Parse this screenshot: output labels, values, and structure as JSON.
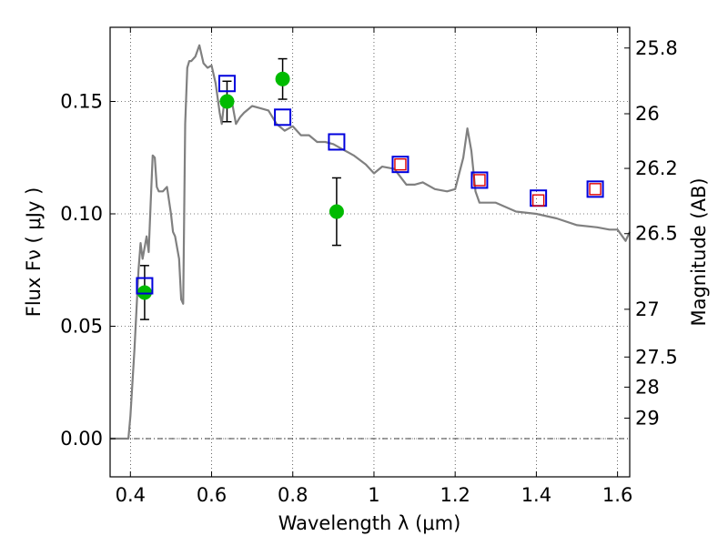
{
  "chart_data": {
    "type": "scatter",
    "title": "",
    "xlabel": "Wavelength  λ (μm)",
    "ylabel": "Flux  Fν  ( μJy )",
    "y2label": "Magnitude (AB)",
    "xlim": [
      0.35,
      1.63
    ],
    "ylim": [
      -0.017,
      0.183
    ],
    "grid": true,
    "x_ticks": [
      {
        "value": 0.4,
        "label": "0.4"
      },
      {
        "value": 0.6,
        "label": "0.6"
      },
      {
        "value": 0.8,
        "label": "0.8"
      },
      {
        "value": 1.0,
        "label": "1"
      },
      {
        "value": 1.2,
        "label": "1.2"
      },
      {
        "value": 1.4,
        "label": "1.4"
      },
      {
        "value": 1.6,
        "label": "1.6"
      }
    ],
    "y_ticks": [
      {
        "value": 0.0,
        "label": "0.00"
      },
      {
        "value": 0.05,
        "label": "0.05"
      },
      {
        "value": 0.1,
        "label": "0.10"
      },
      {
        "value": 0.15,
        "label": "0.15"
      }
    ],
    "mag_ticks": [
      {
        "value": 25.8,
        "label": "25.8"
      },
      {
        "value": 26.0,
        "label": "26"
      },
      {
        "value": 26.2,
        "label": "26.2"
      },
      {
        "value": 26.5,
        "label": "26.5"
      },
      {
        "value": 27.0,
        "label": "27"
      },
      {
        "value": 27.5,
        "label": "27.5"
      },
      {
        "value": 28.0,
        "label": "28"
      },
      {
        "value": 29.0,
        "label": "29"
      }
    ],
    "colors": {
      "model": "#808080",
      "observed": "#00bb00",
      "model_photometry_blue": "#0000dd",
      "model_photometry_red": "#dd0000"
    },
    "series": [
      {
        "kind": "model_spectrum",
        "x": [
          0.35,
          0.38,
          0.395,
          0.4,
          0.41,
          0.42,
          0.425,
          0.43,
          0.44,
          0.445,
          0.45,
          0.455,
          0.46,
          0.465,
          0.47,
          0.48,
          0.49,
          0.5,
          0.505,
          0.51,
          0.52,
          0.525,
          0.53,
          0.535,
          0.54,
          0.545,
          0.55,
          0.56,
          0.57,
          0.58,
          0.59,
          0.6,
          0.61,
          0.62,
          0.625,
          0.63,
          0.635,
          0.64,
          0.65,
          0.66,
          0.67,
          0.68,
          0.7,
          0.72,
          0.74,
          0.76,
          0.78,
          0.8,
          0.82,
          0.84,
          0.86,
          0.88,
          0.9,
          0.92,
          0.95,
          0.98,
          1.0,
          1.02,
          1.05,
          1.08,
          1.1,
          1.12,
          1.15,
          1.18,
          1.2,
          1.22,
          1.23,
          1.24,
          1.25,
          1.26,
          1.3,
          1.35,
          1.4,
          1.45,
          1.5,
          1.55,
          1.58,
          1.6,
          1.62,
          1.63
        ],
        "y": [
          0.0,
          0.0,
          0.0,
          0.01,
          0.04,
          0.075,
          0.087,
          0.08,
          0.09,
          0.083,
          0.105,
          0.126,
          0.125,
          0.112,
          0.11,
          0.11,
          0.112,
          0.1,
          0.092,
          0.09,
          0.08,
          0.062,
          0.06,
          0.14,
          0.165,
          0.168,
          0.168,
          0.17,
          0.175,
          0.167,
          0.165,
          0.166,
          0.158,
          0.145,
          0.14,
          0.148,
          0.152,
          0.148,
          0.15,
          0.14,
          0.143,
          0.145,
          0.148,
          0.147,
          0.146,
          0.14,
          0.137,
          0.139,
          0.135,
          0.135,
          0.132,
          0.132,
          0.131,
          0.129,
          0.126,
          0.122,
          0.118,
          0.121,
          0.12,
          0.113,
          0.113,
          0.114,
          0.111,
          0.11,
          0.111,
          0.125,
          0.138,
          0.128,
          0.11,
          0.105,
          0.105,
          0.101,
          0.1,
          0.098,
          0.095,
          0.094,
          0.093,
          0.093,
          0.088,
          0.092
        ]
      },
      {
        "kind": "observed",
        "x": [
          0.435,
          0.638,
          0.775,
          0.908
        ],
        "y": [
          0.065,
          0.15,
          0.16,
          0.101
        ],
        "yerr": [
          0.012,
          0.009,
          0.009,
          0.015
        ]
      },
      {
        "kind": "model_photometry_blue",
        "x": [
          0.435,
          0.638,
          0.775,
          0.908,
          1.065,
          1.26,
          1.405,
          1.545
        ],
        "y": [
          0.068,
          0.158,
          0.143,
          0.132,
          0.122,
          0.115,
          0.107,
          0.111
        ]
      },
      {
        "kind": "model_photometry_red",
        "x": [
          1.065,
          1.26,
          1.405,
          1.545
        ],
        "y": [
          0.122,
          0.115,
          0.106,
          0.111
        ]
      }
    ]
  }
}
